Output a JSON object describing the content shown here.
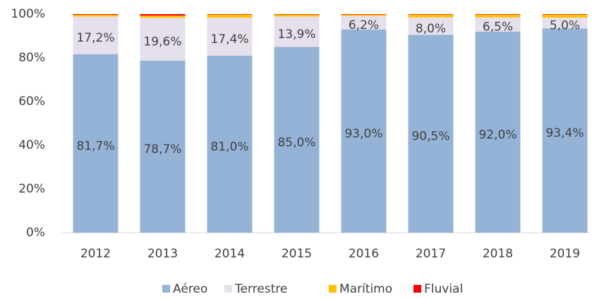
{
  "chart_data": {
    "type": "stacked_bar",
    "categories": [
      "2012",
      "2013",
      "2014",
      "2015",
      "2016",
      "2017",
      "2018",
      "2019"
    ],
    "series": [
      {
        "name": "Aéreo",
        "color": "#95b3d7",
        "values": [
          81.7,
          78.7,
          81.0,
          85.0,
          93.0,
          90.5,
          92.0,
          93.4
        ],
        "value_labels": [
          "81,7%",
          "78,7%",
          "81,0%",
          "85,0%",
          "93,0%",
          "90,5%",
          "92,0%",
          "93,4%"
        ]
      },
      {
        "name": "Terrestre",
        "color": "#e6e0ec",
        "values": [
          17.2,
          19.6,
          17.4,
          13.9,
          6.2,
          8.0,
          6.5,
          5.0
        ],
        "value_labels": [
          "17,2%",
          "19,6%",
          "17,4%",
          "13,9%",
          "6,2%",
          "8,0%",
          "6,5%",
          "5,0%"
        ]
      },
      {
        "name": "Marítimo",
        "color": "#ffc000",
        "values": [
          0.8,
          1.0,
          1.4,
          0.9,
          0.6,
          1.3,
          1.3,
          1.4
        ]
      },
      {
        "name": "Fluvial",
        "color": "#ff0000",
        "values": [
          0.3,
          0.7,
          0.2,
          0.2,
          0.2,
          0.2,
          0.2,
          0.2
        ]
      }
    ],
    "ylim": [
      0,
      100
    ],
    "yticks": [
      {
        "value": 0,
        "label": "0%"
      },
      {
        "value": 20,
        "label": "20%"
      },
      {
        "value": 40,
        "label": "40%"
      },
      {
        "value": 60,
        "label": "60%"
      },
      {
        "value": 80,
        "label": "80%"
      },
      {
        "value": 100,
        "label": "100%"
      }
    ],
    "legend": "bottom"
  }
}
